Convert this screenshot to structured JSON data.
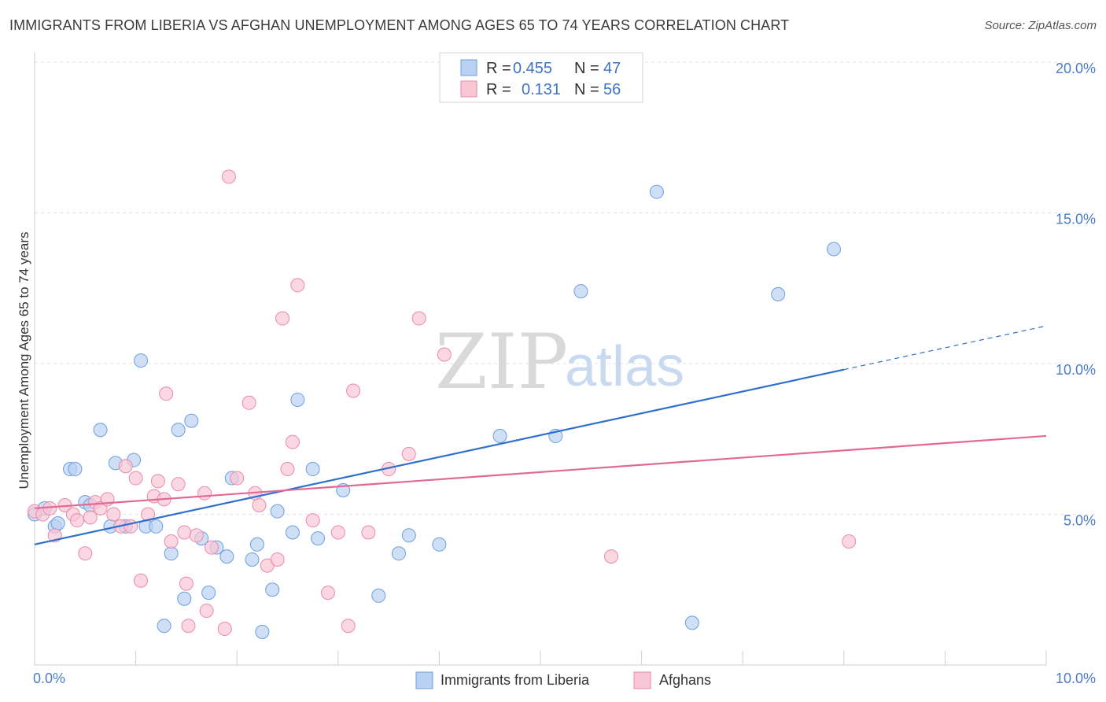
{
  "title": "IMMIGRANTS FROM LIBERIA VS AFGHAN UNEMPLOYMENT AMONG AGES 65 TO 74 YEARS CORRELATION CHART",
  "source": "Source: ZipAtlas.com",
  "watermark": {
    "zip": "ZIP",
    "atlas": "atlas"
  },
  "legend": {
    "r_label": "R =",
    "n_label": "N =",
    "rows": [
      {
        "r": "0.455",
        "n": "47"
      },
      {
        "r": "0.131",
        "n": "56"
      }
    ]
  },
  "colors": {
    "liberia_fill": "#b9d2f2",
    "liberia_stroke": "#6c9fdd",
    "liberia_line": "#2f6fcd",
    "afghan_fill": "#f9c6d6",
    "afghan_stroke": "#e98aab",
    "afghan_line": "#e06a95",
    "grid": "#e3e3e3",
    "tick_text": "#4a7cc9"
  },
  "chart_data": {
    "type": "scatter",
    "xlabel": "",
    "ylabel": "Unemployment Among Ages 65 to 74 years",
    "xlim": [
      0,
      10
    ],
    "ylim": [
      0,
      20
    ],
    "x_tick_labels": [
      "0.0%",
      "10.0%"
    ],
    "y_ticks": [
      5,
      10,
      15,
      20
    ],
    "y_tick_labels": [
      "5.0%",
      "10.0%",
      "15.0%",
      "20.0%"
    ],
    "grid": true,
    "legend_position": "top-center",
    "series": [
      {
        "name": "Immigrants from Liberia",
        "r": 0.455,
        "n": 47,
        "trend": {
          "x0": 0,
          "y0": 4.0,
          "x1": 8.0,
          "y1": 9.8,
          "dash_to_x": 10.0,
          "dash_to_y": 11.25
        },
        "points": [
          [
            0.0,
            5.0
          ],
          [
            0.1,
            5.2
          ],
          [
            0.2,
            4.6
          ],
          [
            0.23,
            4.7
          ],
          [
            0.35,
            6.5
          ],
          [
            0.4,
            6.5
          ],
          [
            0.5,
            5.4
          ],
          [
            0.55,
            5.3
          ],
          [
            0.65,
            7.8
          ],
          [
            0.75,
            4.6
          ],
          [
            0.8,
            6.7
          ],
          [
            0.9,
            4.6
          ],
          [
            0.98,
            6.8
          ],
          [
            1.05,
            10.1
          ],
          [
            1.1,
            4.6
          ],
          [
            1.2,
            4.6
          ],
          [
            1.28,
            1.3
          ],
          [
            1.35,
            3.7
          ],
          [
            1.42,
            7.8
          ],
          [
            1.48,
            2.2
          ],
          [
            1.55,
            8.1
          ],
          [
            1.65,
            4.2
          ],
          [
            1.72,
            2.4
          ],
          [
            1.8,
            3.9
          ],
          [
            1.9,
            3.6
          ],
          [
            1.95,
            6.2
          ],
          [
            2.15,
            3.5
          ],
          [
            2.2,
            4.0
          ],
          [
            2.25,
            1.1
          ],
          [
            2.35,
            2.5
          ],
          [
            2.4,
            5.1
          ],
          [
            2.55,
            4.4
          ],
          [
            2.6,
            8.8
          ],
          [
            2.75,
            6.5
          ],
          [
            2.8,
            4.2
          ],
          [
            3.05,
            5.8
          ],
          [
            3.4,
            2.3
          ],
          [
            3.6,
            3.7
          ],
          [
            3.7,
            4.3
          ],
          [
            4.0,
            4.0
          ],
          [
            4.6,
            7.6
          ],
          [
            5.15,
            7.6
          ],
          [
            5.4,
            12.4
          ],
          [
            6.15,
            15.7
          ],
          [
            6.5,
            1.4
          ],
          [
            7.35,
            12.3
          ],
          [
            7.9,
            13.8
          ]
        ]
      },
      {
        "name": "Afghans",
        "r": 0.131,
        "n": 56,
        "trend": {
          "x0": 0,
          "y0": 5.2,
          "x1": 10.0,
          "y1": 7.6
        },
        "points": [
          [
            0.0,
            5.1
          ],
          [
            0.08,
            5.0
          ],
          [
            0.15,
            5.2
          ],
          [
            0.2,
            4.3
          ],
          [
            0.3,
            5.3
          ],
          [
            0.38,
            5.0
          ],
          [
            0.42,
            4.8
          ],
          [
            0.5,
            3.7
          ],
          [
            0.55,
            4.9
          ],
          [
            0.6,
            5.4
          ],
          [
            0.65,
            5.2
          ],
          [
            0.72,
            5.5
          ],
          [
            0.78,
            5.0
          ],
          [
            0.85,
            4.6
          ],
          [
            0.9,
            6.6
          ],
          [
            0.95,
            4.6
          ],
          [
            1.0,
            6.2
          ],
          [
            1.05,
            2.8
          ],
          [
            1.12,
            5.0
          ],
          [
            1.18,
            5.6
          ],
          [
            1.22,
            6.1
          ],
          [
            1.28,
            5.5
          ],
          [
            1.3,
            9.0
          ],
          [
            1.35,
            4.1
          ],
          [
            1.42,
            6.0
          ],
          [
            1.48,
            4.4
          ],
          [
            1.5,
            2.7
          ],
          [
            1.52,
            1.3
          ],
          [
            1.6,
            4.3
          ],
          [
            1.68,
            5.7
          ],
          [
            1.7,
            1.8
          ],
          [
            1.75,
            3.9
          ],
          [
            1.88,
            1.2
          ],
          [
            1.92,
            16.2
          ],
          [
            2.0,
            6.2
          ],
          [
            2.12,
            8.7
          ],
          [
            2.18,
            5.7
          ],
          [
            2.22,
            5.3
          ],
          [
            2.3,
            3.3
          ],
          [
            2.4,
            3.5
          ],
          [
            2.45,
            11.5
          ],
          [
            2.5,
            6.5
          ],
          [
            2.55,
            7.4
          ],
          [
            2.6,
            12.6
          ],
          [
            2.75,
            4.8
          ],
          [
            2.9,
            2.4
          ],
          [
            3.0,
            4.4
          ],
          [
            3.1,
            1.3
          ],
          [
            3.15,
            9.1
          ],
          [
            3.3,
            4.4
          ],
          [
            3.5,
            6.5
          ],
          [
            3.7,
            7.0
          ],
          [
            3.8,
            11.5
          ],
          [
            4.05,
            10.3
          ],
          [
            5.7,
            3.6
          ],
          [
            8.05,
            4.1
          ]
        ]
      }
    ]
  }
}
